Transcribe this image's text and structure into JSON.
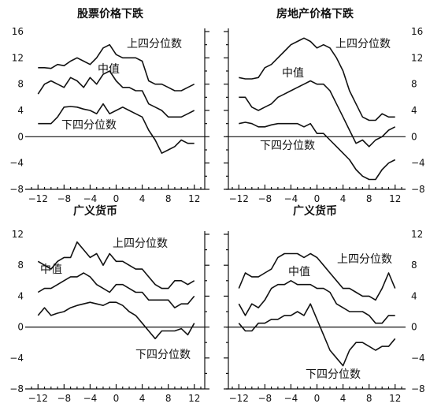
{
  "chart_data": [
    {
      "type": "line",
      "title": "股票价格下跌",
      "x": [
        -12,
        -11,
        -10,
        -9,
        -8,
        -7,
        -6,
        -5,
        -4,
        -3,
        -2,
        -1,
        0,
        1,
        2,
        3,
        4,
        5,
        6,
        7,
        8,
        9,
        10,
        11,
        12
      ],
      "xticks": [
        -12,
        -8,
        -4,
        0,
        4,
        8,
        12
      ],
      "xtick_labels": [
        "−12",
        "−8",
        "−4",
        "0",
        "4",
        "8",
        "12"
      ],
      "xlim": [
        -13,
        13
      ],
      "ylim": [
        -8,
        16
      ],
      "yticks": [
        -8,
        -4,
        0,
        4,
        8,
        12,
        16
      ],
      "ytick_labels": [
        "−8",
        "−4",
        "0",
        "4",
        "8",
        "12",
        "16"
      ],
      "y_axis_side": "left",
      "series": [
        {
          "name": "上四分位数",
          "values": [
            10.5,
            10.5,
            10.4,
            11,
            10.8,
            11.5,
            12,
            11.5,
            11,
            12,
            13.5,
            14,
            12.5,
            12,
            12,
            12,
            11.5,
            8.5,
            8,
            8,
            7.5,
            7,
            7,
            7.5,
            8
          ]
        },
        {
          "name": "中值",
          "values": [
            6.5,
            8,
            8.5,
            8,
            7.5,
            9,
            8.5,
            7.5,
            9,
            8,
            9.5,
            10,
            8.5,
            7.5,
            7.5,
            7,
            7,
            5,
            4.5,
            4,
            3,
            3,
            3,
            3.5,
            4
          ]
        },
        {
          "name": "下四分位数",
          "values": [
            2,
            2,
            2,
            3,
            4.5,
            4.6,
            4.5,
            4.2,
            4,
            3.5,
            5,
            3.5,
            4,
            4.5,
            4,
            3.5,
            3,
            1,
            -0.5,
            -2.5,
            -2,
            -1.5,
            -0.5,
            -1,
            -1
          ]
        }
      ],
      "annotations": [
        {
          "text": "上四分位数",
          "series": "上四分位数"
        },
        {
          "text": "中值",
          "series": "中值"
        },
        {
          "text": "下四分位数",
          "series": "下四分位数"
        }
      ]
    },
    {
      "type": "line",
      "title": "房地产价格下跌",
      "x": [
        -12,
        -11,
        -10,
        -9,
        -8,
        -7,
        -6,
        -5,
        -4,
        -3,
        -2,
        -1,
        0,
        1,
        2,
        3,
        4,
        5,
        6,
        7,
        8,
        9,
        10,
        11,
        12
      ],
      "xticks": [
        -12,
        -8,
        -4,
        0,
        4,
        8,
        12
      ],
      "xtick_labels": [
        "−12",
        "−8",
        "−4",
        "0",
        "4",
        "8",
        "12"
      ],
      "xlim": [
        -13,
        13
      ],
      "ylim": [
        -8,
        16
      ],
      "yticks": [
        -8,
        -4,
        0,
        4,
        8,
        12,
        16
      ],
      "ytick_labels": [
        "−8",
        "−4",
        "0",
        "4",
        "8",
        "12",
        "16"
      ],
      "y_axis_side": "right",
      "series": [
        {
          "name": "上四分位数",
          "values": [
            9,
            8.8,
            8.8,
            9,
            10.5,
            11,
            12,
            13,
            14,
            14.5,
            15,
            14.5,
            13.5,
            14,
            13.5,
            12,
            10,
            7,
            5,
            3,
            2.5,
            2.5,
            3.5,
            3,
            3
          ]
        },
        {
          "name": "中值",
          "values": [
            6,
            6,
            4.5,
            4,
            4.5,
            5,
            6,
            6.5,
            7,
            7.5,
            8,
            8.5,
            8,
            8,
            7,
            5,
            3,
            1,
            -1,
            -0.5,
            -1.5,
            -0.5,
            0,
            1,
            1.5
          ]
        },
        {
          "name": "下四分位数",
          "values": [
            2,
            2.2,
            2,
            1.5,
            1.5,
            1.8,
            2,
            2,
            2,
            2,
            1.5,
            2,
            0.5,
            0.5,
            -0.5,
            -1.5,
            -2.5,
            -3.5,
            -5,
            -6,
            -6.5,
            -6.5,
            -5,
            -4,
            -3.5
          ]
        }
      ],
      "annotations": [
        {
          "text": "上四分位数",
          "series": "上四分位数"
        },
        {
          "text": "中值",
          "series": "中值"
        },
        {
          "text": "下四分位数",
          "series": "下四分位数"
        }
      ]
    },
    {
      "type": "line",
      "title": "广义货币",
      "x": [
        -12,
        -11,
        -10,
        -9,
        -8,
        -7,
        -6,
        -5,
        -4,
        -3,
        -2,
        -1,
        0,
        1,
        2,
        3,
        4,
        5,
        6,
        7,
        8,
        9,
        10,
        11,
        12
      ],
      "xticks": [
        -12,
        -8,
        -4,
        0,
        4,
        8,
        12
      ],
      "xtick_labels": [
        "−12",
        "−8",
        "−4",
        "0",
        "4",
        "8",
        "12"
      ],
      "xlim": [
        -13,
        13
      ],
      "ylim": [
        -8,
        12
      ],
      "yticks": [
        -8,
        -4,
        0,
        4,
        8,
        12
      ],
      "ytick_labels": [
        "−8",
        "−4",
        "0",
        "4",
        "8",
        "12"
      ],
      "y_axis_side": "left",
      "series": [
        {
          "name": "上四分位数",
          "values": [
            8.5,
            8,
            7.5,
            8.5,
            9,
            9,
            11,
            10,
            9,
            9.5,
            8,
            9.5,
            8.5,
            8.5,
            8,
            7.5,
            7.5,
            6.5,
            5.5,
            5,
            5,
            6,
            6,
            5.5,
            6
          ]
        },
        {
          "name": "中值",
          "values": [
            4.5,
            5,
            5,
            5.5,
            6,
            6.5,
            6.5,
            7,
            6.5,
            5.5,
            5,
            4.5,
            5.5,
            5.5,
            5,
            4.5,
            4.5,
            3.5,
            3.5,
            3.5,
            3.5,
            2.5,
            3,
            3,
            4
          ]
        },
        {
          "name": "下四分位数",
          "values": [
            1.5,
            2.5,
            1.5,
            1.8,
            2,
            2.5,
            2.8,
            3,
            3.2,
            3,
            2.8,
            3.2,
            3.2,
            2.8,
            2,
            1.5,
            0.5,
            -0.5,
            -1.5,
            -0.5,
            -0.5,
            -0.5,
            -0.2,
            -1,
            0.5
          ]
        }
      ],
      "annotations": [
        {
          "text": "上四分位数",
          "series": "上四分位数"
        },
        {
          "text": "中值",
          "series": "中值"
        },
        {
          "text": "下四分位数",
          "series": "下四分位数"
        }
      ]
    },
    {
      "type": "line",
      "title": "广义货币",
      "x": [
        -12,
        -11,
        -10,
        -9,
        -8,
        -7,
        -6,
        -5,
        -4,
        -3,
        -2,
        -1,
        0,
        1,
        2,
        3,
        4,
        5,
        6,
        7,
        8,
        9,
        10,
        11,
        12
      ],
      "xticks": [
        -12,
        -8,
        -4,
        0,
        4,
        8,
        12
      ],
      "xtick_labels": [
        "−12",
        "−8",
        "−4",
        "0",
        "4",
        "8",
        "12"
      ],
      "xlim": [
        -13,
        13
      ],
      "ylim": [
        -8,
        12
      ],
      "yticks": [
        -8,
        -4,
        0,
        4,
        8,
        12
      ],
      "ytick_labels": [
        "−8",
        "−4",
        "0",
        "4",
        "8",
        "12"
      ],
      "y_axis_side": "right",
      "series": [
        {
          "name": "上四分位数",
          "values": [
            5,
            7,
            6.5,
            6.5,
            7,
            7.5,
            9,
            9.5,
            9.5,
            9.5,
            9,
            9.5,
            9,
            8,
            7,
            6,
            5,
            5,
            4.5,
            4,
            4,
            3.5,
            5,
            7,
            5
          ]
        },
        {
          "name": "中值",
          "values": [
            3,
            1.5,
            3,
            2.5,
            3.5,
            5,
            5.5,
            5.5,
            6,
            5.5,
            5.5,
            5.5,
            5,
            5,
            4.5,
            3,
            2.5,
            2,
            2,
            2,
            1.5,
            0.5,
            0.5,
            1.5,
            1.5
          ]
        },
        {
          "name": "下四分位数",
          "values": [
            0.5,
            -0.5,
            -0.5,
            0.5,
            0.5,
            1,
            1,
            1.5,
            1.5,
            2,
            1.5,
            3,
            1,
            -1,
            -3,
            -4,
            -5,
            -3,
            -2,
            -2,
            -2.5,
            -3,
            -2.5,
            -2.5,
            -1.5
          ]
        }
      ],
      "annotations": [
        {
          "text": "上四分位数",
          "series": "上四分位数"
        },
        {
          "text": "中值",
          "series": "中值"
        },
        {
          "text": "下四分位数",
          "series": "下四分位数"
        }
      ]
    }
  ]
}
